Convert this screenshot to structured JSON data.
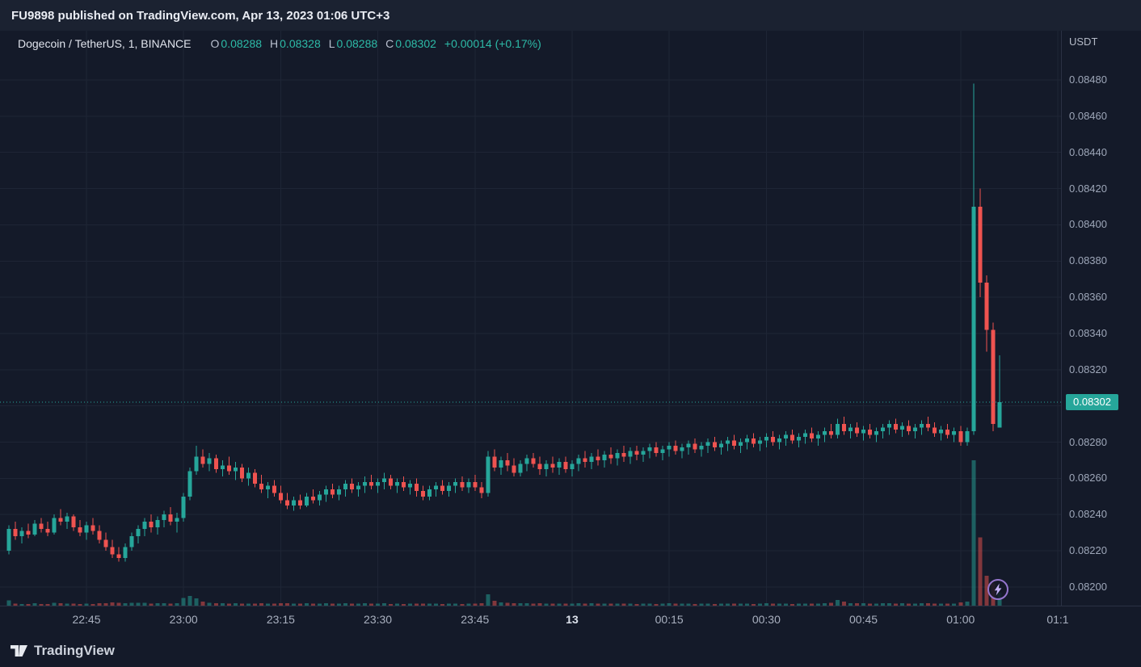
{
  "published_bar": {
    "text": "FU9898 published on TradingView.com, Apr 13, 2023 01:06 UTC+3"
  },
  "legend": {
    "symbol": "Dogecoin / TetherUS, 1, BINANCE",
    "o_label": "O",
    "o_value": "0.08288",
    "h_label": "H",
    "h_value": "0.08328",
    "l_label": "L",
    "l_value": "0.08288",
    "c_label": "C",
    "c_value": "0.08302",
    "change": "+0.00014 (+0.17%)"
  },
  "price_axis": {
    "currency_label": "USDT",
    "labels": [
      "0.08480",
      "0.08460",
      "0.08440",
      "0.08420",
      "0.08400",
      "0.08380",
      "0.08360",
      "0.08340",
      "0.08320",
      "0.08280",
      "0.08260",
      "0.08240",
      "0.08220",
      "0.08200"
    ],
    "current_price_badge": "0.08302"
  },
  "time_axis": {
    "labels": [
      "22:45",
      "23:00",
      "23:15",
      "23:30",
      "23:45",
      "13",
      "00:15",
      "00:30",
      "00:45",
      "01:00",
      "01:1"
    ],
    "day_marker": "13"
  },
  "footer": {
    "brand": "TradingView"
  },
  "colors": {
    "background": "#141a29",
    "topbar_bg": "#1b2231",
    "grid": "#1e2535",
    "separator": "#2a3143",
    "up": "#26a69a",
    "down": "#ef5350",
    "volume_up": "rgba(38,166,154,0.5)",
    "volume_down": "rgba(239,83,80,0.5)",
    "badge_bg": "#26a69a",
    "axis_text": "#9ea7b9",
    "legend_value": "#2dbba8",
    "flash_icon_purple": "#9575cd"
  },
  "chart_data": {
    "type": "candlestick",
    "title": "Dogecoin / TetherUS, 1, BINANCE",
    "unit": "USDT",
    "interval_minutes": 1,
    "start_time": "22:33",
    "current_price": 0.08302,
    "ohlc_readout": {
      "open": 0.08288,
      "high": 0.08328,
      "low": 0.08288,
      "close": 0.08302,
      "change": "+0.00014 (+0.17%)"
    },
    "y_axis": {
      "top_price": 0.0848,
      "step": 0.0002,
      "gridlines": 15,
      "min_label": 0.082,
      "max_label": 0.0848
    },
    "x_axis_ticks": [
      "22:45",
      "23:00",
      "23:15",
      "23:30",
      "23:45",
      "13",
      "00:15",
      "00:30",
      "00:45",
      "01:00",
      "01:1"
    ],
    "columns": [
      "open",
      "high",
      "low",
      "close",
      "volume_rel"
    ],
    "candles": [
      [
        0.0822,
        0.08234,
        0.08218,
        0.08232,
        120
      ],
      [
        0.08232,
        0.08236,
        0.08226,
        0.08228,
        45
      ],
      [
        0.08228,
        0.08233,
        0.08224,
        0.08231,
        38
      ],
      [
        0.08231,
        0.08235,
        0.08227,
        0.08229,
        42
      ],
      [
        0.08229,
        0.08237,
        0.08228,
        0.08235,
        55
      ],
      [
        0.08235,
        0.08238,
        0.0823,
        0.08232,
        40
      ],
      [
        0.08232,
        0.08236,
        0.08228,
        0.0823,
        36
      ],
      [
        0.0823,
        0.0824,
        0.08229,
        0.08238,
        70
      ],
      [
        0.08238,
        0.08243,
        0.08234,
        0.08236,
        52
      ],
      [
        0.08236,
        0.08241,
        0.08232,
        0.08239,
        48
      ],
      [
        0.08239,
        0.0824,
        0.08231,
        0.08233,
        44
      ],
      [
        0.08233,
        0.08237,
        0.08228,
        0.0823,
        40
      ],
      [
        0.0823,
        0.08236,
        0.08226,
        0.08234,
        50
      ],
      [
        0.08234,
        0.08238,
        0.08229,
        0.08231,
        42
      ],
      [
        0.08231,
        0.08234,
        0.08224,
        0.08226,
        55
      ],
      [
        0.08226,
        0.0823,
        0.0822,
        0.08222,
        60
      ],
      [
        0.08222,
        0.08226,
        0.08216,
        0.08218,
        75
      ],
      [
        0.08218,
        0.08222,
        0.08214,
        0.08216,
        70
      ],
      [
        0.08216,
        0.08224,
        0.08214,
        0.08222,
        58
      ],
      [
        0.08222,
        0.0823,
        0.0822,
        0.08228,
        62
      ],
      [
        0.08228,
        0.08234,
        0.08224,
        0.08232,
        66
      ],
      [
        0.08232,
        0.08238,
        0.08228,
        0.08236,
        70
      ],
      [
        0.08236,
        0.0824,
        0.0823,
        0.08233,
        48
      ],
      [
        0.08233,
        0.08239,
        0.08229,
        0.08237,
        52
      ],
      [
        0.08237,
        0.08242,
        0.08233,
        0.0824,
        60
      ],
      [
        0.0824,
        0.08244,
        0.08234,
        0.08236,
        50
      ],
      [
        0.08236,
        0.08241,
        0.0823,
        0.08238,
        55
      ],
      [
        0.08238,
        0.08252,
        0.08236,
        0.0825,
        180
      ],
      [
        0.0825,
        0.08266,
        0.08248,
        0.08264,
        230
      ],
      [
        0.08264,
        0.08278,
        0.08262,
        0.08272,
        170
      ],
      [
        0.08272,
        0.08276,
        0.08266,
        0.08268,
        90
      ],
      [
        0.08268,
        0.08274,
        0.08264,
        0.08271,
        70
      ],
      [
        0.08271,
        0.08273,
        0.08263,
        0.08265,
        60
      ],
      [
        0.08265,
        0.0827,
        0.08261,
        0.08267,
        55
      ],
      [
        0.08267,
        0.08272,
        0.08262,
        0.08264,
        50
      ],
      [
        0.08264,
        0.08269,
        0.08259,
        0.08266,
        52
      ],
      [
        0.08266,
        0.08268,
        0.08258,
        0.0826,
        48
      ],
      [
        0.0826,
        0.08266,
        0.08256,
        0.08263,
        50
      ],
      [
        0.08263,
        0.08265,
        0.08255,
        0.08257,
        46
      ],
      [
        0.08257,
        0.08262,
        0.08252,
        0.08254,
        55
      ],
      [
        0.08254,
        0.08258,
        0.08249,
        0.08256,
        48
      ],
      [
        0.08256,
        0.08259,
        0.0825,
        0.08252,
        44
      ],
      [
        0.08252,
        0.08256,
        0.08246,
        0.08248,
        60
      ],
      [
        0.08248,
        0.08252,
        0.08243,
        0.08245,
        58
      ],
      [
        0.08245,
        0.0825,
        0.08242,
        0.08248,
        50
      ],
      [
        0.08248,
        0.08251,
        0.08243,
        0.08245,
        46
      ],
      [
        0.08245,
        0.08252,
        0.08244,
        0.0825,
        52
      ],
      [
        0.0825,
        0.08254,
        0.08246,
        0.08248,
        48
      ],
      [
        0.08248,
        0.08253,
        0.08245,
        0.08251,
        50
      ],
      [
        0.08251,
        0.08256,
        0.08247,
        0.08254,
        54
      ],
      [
        0.08254,
        0.08257,
        0.08249,
        0.08251,
        46
      ],
      [
        0.08251,
        0.08256,
        0.08248,
        0.08254,
        48
      ],
      [
        0.08254,
        0.08259,
        0.0825,
        0.08257,
        56
      ],
      [
        0.08257,
        0.0826,
        0.08252,
        0.08254,
        44
      ],
      [
        0.08254,
        0.08258,
        0.0825,
        0.08256,
        46
      ],
      [
        0.08256,
        0.08261,
        0.08252,
        0.08258,
        52
      ],
      [
        0.08258,
        0.08262,
        0.08254,
        0.08256,
        44
      ],
      [
        0.08256,
        0.0826,
        0.08252,
        0.08258,
        48
      ],
      [
        0.08258,
        0.08263,
        0.08254,
        0.0826,
        52
      ],
      [
        0.0826,
        0.08262,
        0.08254,
        0.08256,
        42
      ],
      [
        0.08256,
        0.0826,
        0.08252,
        0.08258,
        46
      ],
      [
        0.08258,
        0.08261,
        0.08253,
        0.08255,
        42
      ],
      [
        0.08255,
        0.08259,
        0.08251,
        0.08257,
        46
      ],
      [
        0.08257,
        0.0826,
        0.0825,
        0.08253,
        44
      ],
      [
        0.08253,
        0.08256,
        0.08248,
        0.0825,
        50
      ],
      [
        0.0825,
        0.08256,
        0.08248,
        0.08254,
        48
      ],
      [
        0.08254,
        0.08258,
        0.0825,
        0.08256,
        50
      ],
      [
        0.08256,
        0.08259,
        0.08251,
        0.08253,
        42
      ],
      [
        0.08253,
        0.08258,
        0.0825,
        0.08256,
        46
      ],
      [
        0.08256,
        0.0826,
        0.08252,
        0.08258,
        50
      ],
      [
        0.08258,
        0.08261,
        0.08253,
        0.08255,
        42
      ],
      [
        0.08255,
        0.0826,
        0.08252,
        0.08258,
        46
      ],
      [
        0.08258,
        0.08262,
        0.08253,
        0.08255,
        44
      ],
      [
        0.08255,
        0.08258,
        0.08249,
        0.08252,
        52
      ],
      [
        0.08252,
        0.08275,
        0.0825,
        0.08272,
        260
      ],
      [
        0.08272,
        0.08276,
        0.08264,
        0.08266,
        110
      ],
      [
        0.08266,
        0.08272,
        0.08262,
        0.0827,
        80
      ],
      [
        0.0827,
        0.08274,
        0.08264,
        0.08267,
        66
      ],
      [
        0.08267,
        0.08271,
        0.08261,
        0.08263,
        58
      ],
      [
        0.08263,
        0.0827,
        0.08261,
        0.08268,
        54
      ],
      [
        0.08268,
        0.08273,
        0.08264,
        0.08271,
        58
      ],
      [
        0.08271,
        0.08274,
        0.08266,
        0.08268,
        50
      ],
      [
        0.08268,
        0.08272,
        0.08262,
        0.08265,
        52
      ],
      [
        0.08265,
        0.0827,
        0.08261,
        0.08268,
        50
      ],
      [
        0.08268,
        0.08272,
        0.08263,
        0.08266,
        46
      ],
      [
        0.08266,
        0.08271,
        0.08262,
        0.08269,
        48
      ],
      [
        0.08269,
        0.08272,
        0.08263,
        0.08265,
        44
      ],
      [
        0.08265,
        0.0827,
        0.08261,
        0.08268,
        50
      ],
      [
        0.08268,
        0.08273,
        0.08264,
        0.08271,
        54
      ],
      [
        0.08271,
        0.08275,
        0.08266,
        0.08269,
        48
      ],
      [
        0.08269,
        0.08274,
        0.08265,
        0.08272,
        52
      ],
      [
        0.08272,
        0.08276,
        0.08267,
        0.0827,
        46
      ],
      [
        0.0827,
        0.08275,
        0.08266,
        0.08273,
        50
      ],
      [
        0.08273,
        0.08277,
        0.08268,
        0.08271,
        44
      ],
      [
        0.08271,
        0.08276,
        0.08267,
        0.08274,
        48
      ],
      [
        0.08274,
        0.08278,
        0.08269,
        0.08272,
        44
      ],
      [
        0.08272,
        0.08277,
        0.08268,
        0.08275,
        48
      ],
      [
        0.08275,
        0.08278,
        0.0827,
        0.08273,
        42
      ],
      [
        0.08273,
        0.08277,
        0.08269,
        0.08275,
        46
      ],
      [
        0.08275,
        0.08279,
        0.08271,
        0.08277,
        50
      ],
      [
        0.08277,
        0.0828,
        0.08272,
        0.08274,
        42
      ],
      [
        0.08274,
        0.08278,
        0.0827,
        0.08276,
        46
      ],
      [
        0.08276,
        0.0828,
        0.08272,
        0.08278,
        52
      ],
      [
        0.08278,
        0.08281,
        0.08273,
        0.08275,
        44
      ],
      [
        0.08275,
        0.08279,
        0.08271,
        0.08277,
        46
      ],
      [
        0.08277,
        0.08281,
        0.08273,
        0.08279,
        50
      ],
      [
        0.08279,
        0.08282,
        0.08274,
        0.08276,
        42
      ],
      [
        0.08276,
        0.0828,
        0.08272,
        0.08278,
        46
      ],
      [
        0.08278,
        0.08282,
        0.08274,
        0.0828,
        50
      ],
      [
        0.0828,
        0.08283,
        0.08275,
        0.08277,
        42
      ],
      [
        0.08277,
        0.08281,
        0.08273,
        0.08279,
        46
      ],
      [
        0.08279,
        0.08283,
        0.08275,
        0.08281,
        50
      ],
      [
        0.08281,
        0.08284,
        0.08276,
        0.08278,
        44
      ],
      [
        0.08278,
        0.08282,
        0.08274,
        0.0828,
        46
      ],
      [
        0.0828,
        0.08284,
        0.08276,
        0.08282,
        50
      ],
      [
        0.08282,
        0.08285,
        0.08277,
        0.08279,
        42
      ],
      [
        0.08279,
        0.08283,
        0.08275,
        0.08281,
        46
      ],
      [
        0.08281,
        0.08285,
        0.08277,
        0.08283,
        52
      ],
      [
        0.08283,
        0.08286,
        0.08278,
        0.0828,
        44
      ],
      [
        0.0828,
        0.08284,
        0.08276,
        0.08282,
        46
      ],
      [
        0.08282,
        0.08286,
        0.08278,
        0.08284,
        50
      ],
      [
        0.08284,
        0.08287,
        0.08279,
        0.08281,
        42
      ],
      [
        0.08281,
        0.08285,
        0.08277,
        0.08283,
        46
      ],
      [
        0.08283,
        0.08287,
        0.08279,
        0.08285,
        50
      ],
      [
        0.08285,
        0.08288,
        0.0828,
        0.08282,
        44
      ],
      [
        0.08282,
        0.08286,
        0.08278,
        0.08284,
        46
      ],
      [
        0.08284,
        0.08288,
        0.0828,
        0.08286,
        52
      ],
      [
        0.08286,
        0.0829,
        0.08282,
        0.08284,
        70
      ],
      [
        0.08284,
        0.08293,
        0.08282,
        0.0829,
        130
      ],
      [
        0.0829,
        0.08294,
        0.08284,
        0.08286,
        90
      ],
      [
        0.08286,
        0.0829,
        0.08282,
        0.08288,
        60
      ],
      [
        0.08288,
        0.08291,
        0.08283,
        0.08285,
        52
      ],
      [
        0.08285,
        0.08289,
        0.08281,
        0.08287,
        56
      ],
      [
        0.08287,
        0.0829,
        0.08282,
        0.08284,
        48
      ],
      [
        0.08284,
        0.08288,
        0.0828,
        0.08286,
        50
      ],
      [
        0.08286,
        0.0829,
        0.08282,
        0.08288,
        54
      ],
      [
        0.08288,
        0.08292,
        0.08284,
        0.0829,
        58
      ],
      [
        0.0829,
        0.08293,
        0.08285,
        0.08287,
        48
      ],
      [
        0.08287,
        0.08291,
        0.08283,
        0.08289,
        52
      ],
      [
        0.08289,
        0.08292,
        0.08284,
        0.08286,
        46
      ],
      [
        0.08286,
        0.0829,
        0.08282,
        0.08288,
        50
      ],
      [
        0.08288,
        0.08292,
        0.08284,
        0.0829,
        54
      ],
      [
        0.0829,
        0.08294,
        0.08286,
        0.08288,
        60
      ],
      [
        0.08288,
        0.08291,
        0.08283,
        0.08285,
        48
      ],
      [
        0.08285,
        0.08289,
        0.08281,
        0.08287,
        46
      ],
      [
        0.08287,
        0.0829,
        0.08282,
        0.08284,
        44
      ],
      [
        0.08284,
        0.08288,
        0.0828,
        0.08286,
        48
      ],
      [
        0.08286,
        0.08289,
        0.08278,
        0.0828,
        80
      ],
      [
        0.0828,
        0.08288,
        0.08278,
        0.08286,
        90
      ],
      [
        0.08286,
        0.08478,
        0.08284,
        0.0841,
        3400
      ],
      [
        0.0841,
        0.0842,
        0.0836,
        0.08368,
        1600
      ],
      [
        0.08368,
        0.08372,
        0.0833,
        0.08342,
        700
      ],
      [
        0.08342,
        0.08346,
        0.08286,
        0.0829,
        520
      ],
      [
        0.08288,
        0.08328,
        0.08288,
        0.08302,
        300
      ]
    ]
  }
}
